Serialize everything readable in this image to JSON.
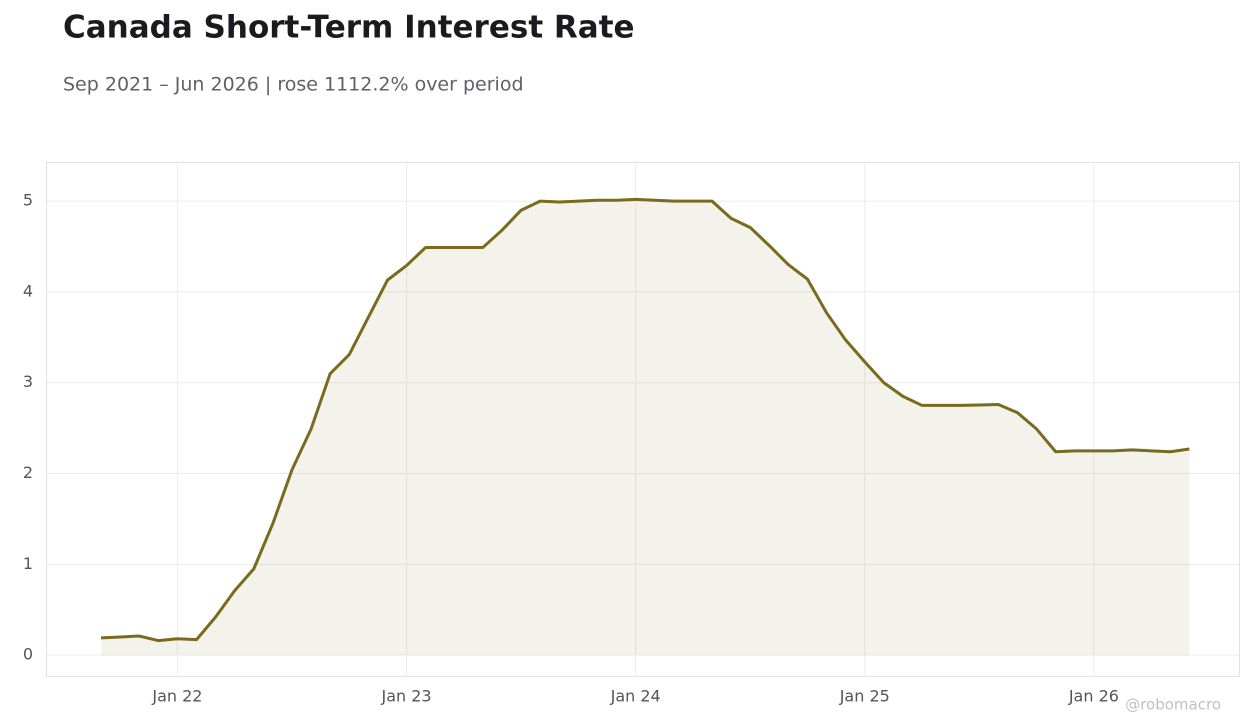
{
  "chart_data": {
    "type": "area",
    "title": "Canada Short-Term Interest Rate",
    "subtitle": "Sep 2021 – Jun 2026 | rose 1112.2% over period",
    "watermark": "@robomacro",
    "x": [
      "2021-09",
      "2021-10",
      "2021-11",
      "2021-12",
      "2022-01",
      "2022-02",
      "2022-03",
      "2022-04",
      "2022-05",
      "2022-06",
      "2022-07",
      "2022-08",
      "2022-09",
      "2022-10",
      "2022-11",
      "2022-12",
      "2023-01",
      "2023-02",
      "2023-03",
      "2023-04",
      "2023-05",
      "2023-06",
      "2023-07",
      "2023-08",
      "2023-09",
      "2023-10",
      "2023-11",
      "2023-12",
      "2024-01",
      "2024-02",
      "2024-03",
      "2024-04",
      "2024-05",
      "2024-06",
      "2024-07",
      "2024-08",
      "2024-09",
      "2024-10",
      "2024-11",
      "2024-12",
      "2025-01",
      "2025-02",
      "2025-03",
      "2025-04",
      "2025-05",
      "2025-06",
      "2025-07",
      "2025-08",
      "2025-09",
      "2025-10",
      "2025-11",
      "2025-12",
      "2026-01",
      "2026-02",
      "2026-03",
      "2026-04",
      "2026-05",
      "2026-06"
    ],
    "series": [
      {
        "name": "Short-Term Interest Rate",
        "color": "#7a6a1e",
        "values": [
          0.19,
          0.2,
          0.21,
          0.16,
          0.18,
          0.17,
          0.42,
          0.71,
          0.95,
          1.45,
          2.04,
          2.49,
          3.1,
          3.31,
          3.72,
          4.13,
          4.29,
          4.49,
          4.49,
          4.49,
          4.49,
          4.68,
          4.9,
          5.0,
          4.99,
          5.0,
          5.01,
          5.01,
          5.02,
          5.01,
          5.0,
          5.0,
          5.0,
          4.81,
          4.71,
          4.51,
          4.3,
          4.14,
          3.77,
          3.47,
          3.23,
          3.0,
          2.85,
          2.75,
          2.75,
          2.75,
          2.755,
          2.76,
          2.67,
          2.49,
          2.24,
          2.25,
          2.25,
          2.25,
          2.26,
          2.25,
          2.24,
          2.27
        ]
      }
    ],
    "ylim": [
      -0.23,
      5.42
    ],
    "yticks": [
      0,
      1,
      2,
      3,
      4,
      5
    ],
    "xticks": [
      {
        "value": "2022-01",
        "label": "Jan 22"
      },
      {
        "value": "2023-01",
        "label": "Jan 23"
      },
      {
        "value": "2024-01",
        "label": "Jan 24"
      },
      {
        "value": "2025-01",
        "label": "Jan 25"
      },
      {
        "value": "2026-01",
        "label": "Jan 26"
      }
    ],
    "grid": true
  }
}
